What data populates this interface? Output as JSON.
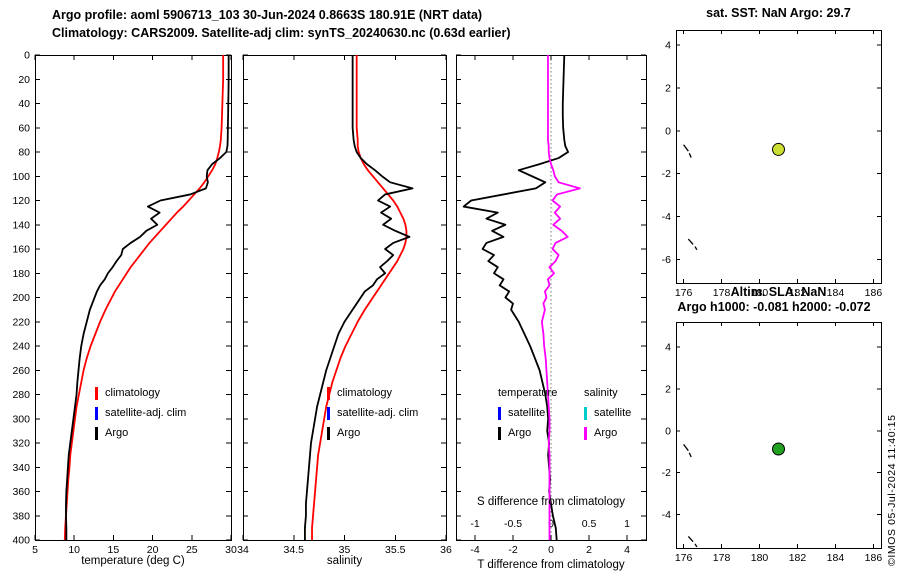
{
  "header": {
    "title_line1": "Argo profile: aoml 5906713_103 30-Jun-2024 0.8663S 180.91E (NRT data)",
    "title_line2": "Climatology: CARS2009. Satellite-adj clim: synTS_20240630.nc (0.63d earlier)"
  },
  "footer": {
    "credit": "©IMOS 05-Jul-2024 11:40:15"
  },
  "chart_data": [
    {
      "id": "temperature_profile",
      "type": "line",
      "xlabel": "temperature (deg C)",
      "xlim": [
        5,
        30
      ],
      "xticks": [
        5,
        10,
        15,
        20,
        25,
        30
      ],
      "ylim": [
        0,
        400
      ],
      "y_reversed": true,
      "yticks": [
        0,
        20,
        40,
        60,
        80,
        100,
        120,
        140,
        160,
        180,
        200,
        220,
        240,
        260,
        280,
        300,
        320,
        340,
        360,
        380,
        400
      ],
      "grid": false,
      "legend": [
        {
          "label": "climatology",
          "color": "#ff0000"
        },
        {
          "label": "satellite-adj. clim",
          "color": "#0000ff"
        },
        {
          "label": "Argo",
          "color": "#000000"
        }
      ],
      "depths": [
        0,
        10,
        20,
        30,
        40,
        50,
        60,
        70,
        75,
        80,
        85,
        90,
        95,
        100,
        105,
        110,
        115,
        120,
        125,
        130,
        135,
        140,
        145,
        150,
        155,
        160,
        165,
        170,
        175,
        180,
        185,
        190,
        195,
        200,
        205,
        210,
        220,
        230,
        240,
        250,
        260,
        270,
        280,
        290,
        300,
        310,
        320,
        330,
        340,
        350,
        360,
        370,
        380,
        390,
        400
      ],
      "series": [
        {
          "name": "climatology",
          "color": "#ff0000",
          "values": [
            29.0,
            29.0,
            29.0,
            28.95,
            28.9,
            28.85,
            28.8,
            28.7,
            28.6,
            28.45,
            28.25,
            28.0,
            27.6,
            27.1,
            26.6,
            26.0,
            25.3,
            24.6,
            23.9,
            23.1,
            22.4,
            21.7,
            21.0,
            20.3,
            19.6,
            19.0,
            18.4,
            17.8,
            17.2,
            16.7,
            16.2,
            15.7,
            15.2,
            14.8,
            14.4,
            14.0,
            13.3,
            12.7,
            12.1,
            11.6,
            11.2,
            10.9,
            10.6,
            10.3,
            10.1,
            9.9,
            9.7,
            9.5,
            9.4,
            9.25,
            9.15,
            9.05,
            8.95,
            8.85,
            8.8
          ]
        },
        {
          "name": "Argo",
          "color": "#000000",
          "values": [
            29.7,
            29.7,
            29.7,
            29.68,
            29.65,
            29.63,
            29.6,
            29.58,
            29.55,
            29.4,
            28.6,
            27.6,
            27.0,
            26.9,
            27.05,
            26.8,
            24.8,
            21.0,
            19.4,
            20.9,
            19.8,
            20.6,
            19.2,
            18.4,
            17.2,
            16.2,
            16.0,
            15.4,
            14.9,
            14.3,
            13.9,
            13.3,
            12.9,
            12.6,
            12.3,
            12.0,
            11.6,
            11.2,
            10.9,
            10.7,
            10.55,
            10.4,
            10.3,
            10.1,
            9.9,
            9.7,
            9.5,
            9.3,
            9.2,
            9.1,
            9.0,
            8.95,
            8.95,
            9.0,
            9.0
          ]
        }
      ]
    },
    {
      "id": "salinity_profile",
      "type": "line",
      "xlabel": "salinity",
      "xlim": [
        34,
        36
      ],
      "xticks": [
        34,
        34.5,
        35,
        35.5,
        36
      ],
      "ylim": [
        0,
        400
      ],
      "y_reversed": true,
      "yticks": [
        0,
        20,
        40,
        60,
        80,
        100,
        120,
        140,
        160,
        180,
        200,
        220,
        240,
        260,
        280,
        300,
        320,
        340,
        360,
        380,
        400
      ],
      "grid": false,
      "legend": [
        {
          "label": "climatology",
          "color": "#ff0000"
        },
        {
          "label": "satellite-adj. clim",
          "color": "#0000ff"
        },
        {
          "label": "Argo",
          "color": "#000000"
        }
      ],
      "depths": [
        0,
        10,
        20,
        30,
        40,
        50,
        60,
        70,
        75,
        80,
        85,
        90,
        95,
        100,
        105,
        110,
        115,
        120,
        125,
        130,
        135,
        140,
        145,
        150,
        155,
        160,
        165,
        170,
        175,
        180,
        185,
        190,
        195,
        200,
        205,
        210,
        220,
        230,
        240,
        250,
        260,
        270,
        280,
        290,
        300,
        310,
        320,
        330,
        340,
        350,
        360,
        370,
        380,
        390,
        400
      ],
      "series": [
        {
          "name": "climatology",
          "color": "#ff0000",
          "values": [
            35.12,
            35.12,
            35.12,
            35.12,
            35.12,
            35.12,
            35.12,
            35.13,
            35.13,
            35.14,
            35.16,
            35.19,
            35.23,
            35.28,
            35.33,
            35.38,
            35.43,
            35.48,
            35.52,
            35.55,
            35.58,
            35.6,
            35.61,
            35.61,
            35.6,
            35.58,
            35.55,
            35.52,
            35.48,
            35.44,
            35.4,
            35.36,
            35.32,
            35.28,
            35.24,
            35.2,
            35.13,
            35.07,
            35.01,
            34.96,
            34.92,
            34.88,
            34.85,
            34.82,
            34.8,
            34.78,
            34.76,
            34.74,
            34.73,
            34.72,
            34.71,
            34.7,
            34.69,
            34.68,
            34.68
          ]
        },
        {
          "name": "Argo",
          "color": "#000000",
          "values": [
            35.08,
            35.08,
            35.08,
            35.08,
            35.08,
            35.08,
            35.08,
            35.09,
            35.1,
            35.12,
            35.16,
            35.22,
            35.3,
            35.37,
            35.45,
            35.67,
            35.4,
            35.33,
            35.45,
            35.36,
            35.46,
            35.38,
            35.5,
            35.64,
            35.48,
            35.4,
            35.48,
            35.42,
            35.35,
            35.4,
            35.32,
            35.28,
            35.2,
            35.16,
            35.12,
            35.08,
            35.0,
            34.94,
            34.9,
            34.86,
            34.82,
            34.79,
            34.76,
            34.73,
            34.71,
            34.69,
            34.67,
            34.66,
            34.65,
            34.64,
            34.63,
            34.62,
            34.62,
            34.61,
            34.61
          ]
        }
      ]
    },
    {
      "id": "difference_profile",
      "type": "line",
      "xlabel_bottom": "T difference from climatology",
      "xlabel_inner": "S difference from climatology",
      "x_T": {
        "lim": [
          -5,
          5
        ],
        "ticks": [
          -4,
          -2,
          0,
          2,
          4
        ]
      },
      "x_S": {
        "lim": [
          -1.25,
          1.25
        ],
        "ticks": [
          -1,
          -0.5,
          0,
          0.5,
          1
        ]
      },
      "ylim": [
        0,
        400
      ],
      "y_reversed": true,
      "yticks": [
        0,
        20,
        40,
        60,
        80,
        100,
        120,
        140,
        160,
        180,
        200,
        220,
        240,
        260,
        280,
        300,
        320,
        340,
        360,
        380,
        400
      ],
      "zero_reference_line": true,
      "legend_temperature": {
        "title": "temperature",
        "entries": [
          {
            "label": "satellite",
            "color": "#0000ff"
          },
          {
            "label": "Argo",
            "color": "#000000"
          }
        ]
      },
      "legend_salinity": {
        "title": "salinity",
        "entries": [
          {
            "label": "satellite",
            "color": "#00cccc"
          },
          {
            "label": "Argo",
            "color": "#ff00ff"
          }
        ]
      },
      "depths": [
        0,
        10,
        20,
        30,
        40,
        50,
        60,
        70,
        75,
        80,
        85,
        90,
        95,
        100,
        105,
        110,
        115,
        120,
        125,
        130,
        135,
        140,
        145,
        150,
        155,
        160,
        165,
        170,
        175,
        180,
        185,
        190,
        195,
        200,
        205,
        210,
        220,
        230,
        240,
        250,
        260,
        270,
        280,
        290,
        300,
        310,
        320,
        330,
        340,
        350,
        360,
        370,
        380,
        390,
        400
      ],
      "series": [
        {
          "name": "T difference Argo minus climatology",
          "axis": "T",
          "color": "#000000",
          "values": [
            0.7,
            0.68,
            0.66,
            0.64,
            0.62,
            0.62,
            0.64,
            0.7,
            0.75,
            0.9,
            0.4,
            -0.6,
            -1.7,
            -1.0,
            -0.3,
            -0.8,
            -2.5,
            -4.2,
            -4.6,
            -2.8,
            -3.4,
            -2.4,
            -3.1,
            -2.5,
            -3.4,
            -3.6,
            -3.0,
            -3.3,
            -2.8,
            -3.0,
            -2.5,
            -2.7,
            -2.2,
            -2.4,
            -2.0,
            -2.1,
            -1.7,
            -1.4,
            -1.1,
            -0.85,
            -0.6,
            -0.45,
            -0.3,
            -0.2,
            -0.15,
            -0.2,
            -0.1,
            -0.15,
            -0.1,
            -0.05,
            -0.1,
            0.0,
            0.1,
            0.25,
            0.3
          ]
        },
        {
          "name": "S difference Argo minus climatology",
          "axis": "S",
          "color": "#ff00ff",
          "values": [
            -0.04,
            -0.04,
            -0.04,
            -0.04,
            -0.04,
            -0.04,
            -0.04,
            -0.04,
            -0.03,
            -0.03,
            -0.02,
            0.0,
            0.03,
            0.05,
            0.1,
            0.38,
            0.08,
            0.02,
            0.12,
            0.05,
            0.12,
            0.03,
            0.14,
            0.22,
            0.06,
            0.02,
            0.1,
            0.06,
            -0.02,
            0.04,
            -0.04,
            -0.02,
            -0.08,
            -0.06,
            -0.1,
            -0.08,
            -0.12,
            -0.1,
            -0.09,
            -0.07,
            -0.06,
            -0.05,
            -0.04,
            -0.03,
            -0.02,
            -0.02,
            -0.03,
            -0.02,
            -0.02,
            -0.02,
            -0.02,
            -0.02,
            -0.02,
            -0.02,
            -0.02
          ]
        }
      ]
    },
    {
      "id": "map_sst",
      "type": "scatter",
      "title": "sat. SST: NaN Argo: 29.7",
      "xlim": [
        175.6,
        186.4
      ],
      "ylim": [
        -7.1,
        4.7
      ],
      "xticks": [
        176,
        178,
        180,
        182,
        184,
        186
      ],
      "yticks": [
        4,
        2,
        0,
        -2,
        -4,
        -6
      ],
      "point": {
        "lon": 181,
        "lat": -0.87,
        "color": "#ccdd33",
        "edge": "#000000"
      },
      "coastline": [
        [
          [
            176.0,
            -0.65
          ],
          [
            176.25,
            -0.95
          ]
        ],
        [
          [
            176.3,
            -1.05
          ],
          [
            176.4,
            -1.25
          ]
        ],
        [
          [
            176.25,
            -5.05
          ],
          [
            176.5,
            -5.3
          ]
        ],
        [
          [
            176.6,
            -5.4
          ],
          [
            176.7,
            -5.55
          ]
        ]
      ]
    },
    {
      "id": "map_sla",
      "type": "scatter",
      "title_line1": "Altim. SLA: NaN",
      "title_line2": "Argo h1000: -0.081 h2000: -0.072",
      "xlim": [
        175.6,
        186.4
      ],
      "ylim": [
        -5.6,
        5.2
      ],
      "xticks": [
        176,
        178,
        180,
        182,
        184,
        186
      ],
      "yticks": [
        4,
        2,
        0,
        -2,
        -4
      ],
      "point": {
        "lon": 181,
        "lat": -0.87,
        "color": "#22a022",
        "edge": "#000000"
      },
      "coastline": [
        [
          [
            176.0,
            -0.65
          ],
          [
            176.25,
            -0.95
          ]
        ],
        [
          [
            176.3,
            -1.05
          ],
          [
            176.4,
            -1.25
          ]
        ],
        [
          [
            176.25,
            -5.05
          ],
          [
            176.5,
            -5.3
          ]
        ],
        [
          [
            176.6,
            -5.4
          ],
          [
            176.7,
            -5.55
          ]
        ]
      ]
    }
  ]
}
